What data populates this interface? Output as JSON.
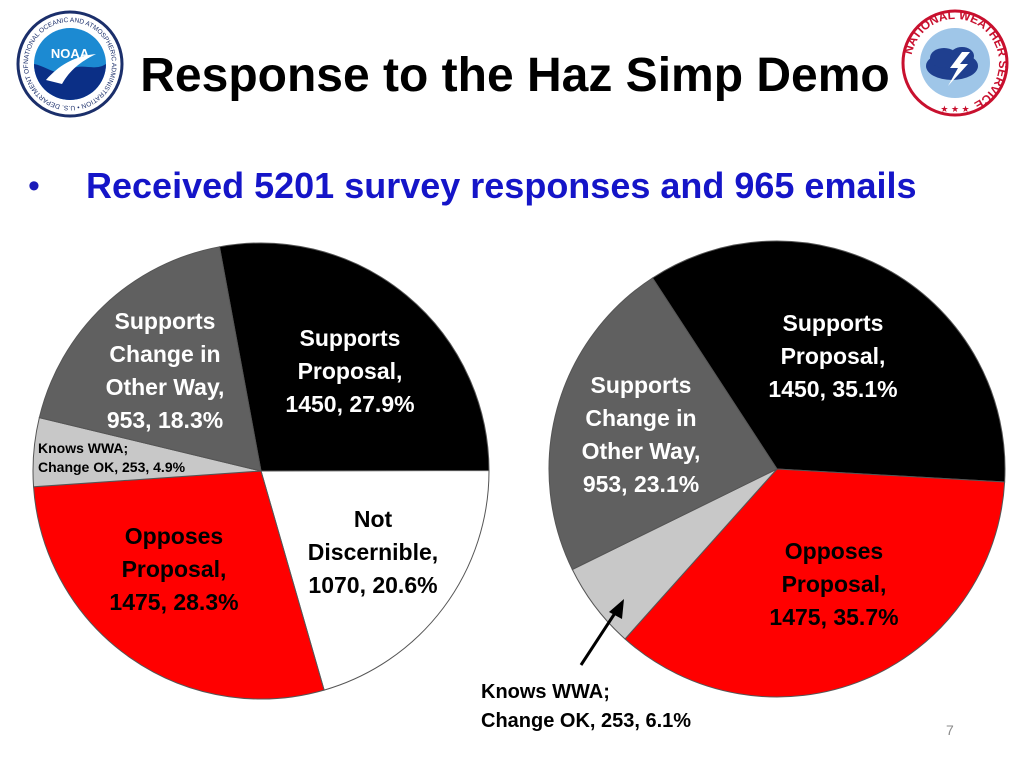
{
  "slide": {
    "title": "Response to the Haz Simp Demo",
    "bullet": "Received 5201 survey responses and 965 emails",
    "page_number": "7",
    "logos": {
      "left": {
        "name": "NOAA",
        "ring_text": "NATIONAL OCEANIC AND ATMOSPHERIC ADMINISTRATION • U.S. DEPARTMENT OF COMMERCE •"
      },
      "right": {
        "name": "NATIONAL WEATHER SERVICE"
      }
    }
  },
  "colors": {
    "title": "#000000",
    "bullet": "#1515c8",
    "supports_proposal": "#000000",
    "opposes_proposal": "#ff0000",
    "supports_change": "#606060",
    "knows_wwa": "#c8c8c8",
    "not_discernible": "#ffffff"
  },
  "chart_data": [
    {
      "type": "pie",
      "title": "",
      "slices": [
        {
          "label": [
            "Supports",
            "Proposal,",
            "1450, 27.9%"
          ],
          "value": 1450,
          "percent": 27.9,
          "color": "#000000",
          "text_color": "#ffffff"
        },
        {
          "label": [
            "Not",
            "Discernible,",
            "1070, 20.6%"
          ],
          "value": 1070,
          "percent": 20.6,
          "color": "#ffffff",
          "text_color": "#000000"
        },
        {
          "label": [
            "Opposes",
            "Proposal,",
            "1475, 28.3%"
          ],
          "value": 1475,
          "percent": 28.3,
          "color": "#ff0000",
          "text_color": "#000000"
        },
        {
          "label": [
            "Knows WWA;",
            "Change OK, 253, 4.9%"
          ],
          "value": 253,
          "percent": 4.9,
          "color": "#c8c8c8",
          "text_color": "#000000"
        },
        {
          "label": [
            "Supports",
            "Change in",
            "Other Way,",
            "953, 18.3%"
          ],
          "value": 953,
          "percent": 18.3,
          "color": "#606060",
          "text_color": "#ffffff"
        }
      ]
    },
    {
      "type": "pie",
      "title": "",
      "slices": [
        {
          "label": [
            "Supports",
            "Proposal,",
            "1450, 35.1%"
          ],
          "value": 1450,
          "percent": 35.1,
          "color": "#000000",
          "text_color": "#ffffff"
        },
        {
          "label": [
            "Opposes",
            "Proposal,",
            "1475, 35.7%"
          ],
          "value": 1475,
          "percent": 35.7,
          "color": "#ff0000",
          "text_color": "#000000"
        },
        {
          "label": [
            "Knows WWA;",
            "Change OK, 253, 6.1%"
          ],
          "value": 253,
          "percent": 6.1,
          "color": "#c8c8c8",
          "text_color": "#000000",
          "external": true
        },
        {
          "label": [
            "Supports",
            "Change in",
            "Other Way,",
            "953, 23.1%"
          ],
          "value": 953,
          "percent": 23.1,
          "color": "#606060",
          "text_color": "#ffffff"
        }
      ]
    }
  ]
}
